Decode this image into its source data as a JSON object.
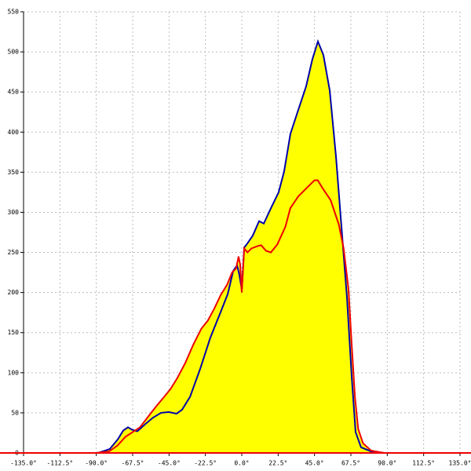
{
  "chart_data": {
    "type": "area-line",
    "xlim": [
      -135,
      135
    ],
    "xticks": [
      {
        "value": -135,
        "label": "-135.0°"
      },
      {
        "value": -112.5,
        "label": "-112.5°"
      },
      {
        "value": -90,
        "label": "-90.0°"
      },
      {
        "value": -67.5,
        "label": "-67.5°"
      },
      {
        "value": -45,
        "label": "-45.0°"
      },
      {
        "value": -22.5,
        "label": "-22.5°"
      },
      {
        "value": 0,
        "label": "0.0°"
      },
      {
        "value": 22.5,
        "label": "22.5°"
      },
      {
        "value": 45,
        "label": "45.0°"
      },
      {
        "value": 67.5,
        "label": "67.5°"
      },
      {
        "value": 90,
        "label": "90.0°"
      },
      {
        "value": 112.5,
        "label": "112.5°"
      },
      {
        "value": 135,
        "label": "135.0°"
      }
    ],
    "ylim": [
      0,
      550
    ],
    "yticks": [
      0,
      50,
      100,
      150,
      200,
      250,
      300,
      350,
      400,
      450,
      500,
      550
    ],
    "grid": true,
    "fill_color": "#ffff00",
    "series": [
      {
        "color": "#0000aa",
        "x": [
          -88.9,
          -81.6,
          -76.7,
          -73.3,
          -70.4,
          -68,
          -64.6,
          -59.7,
          -54.9,
          -50,
          -45.2,
          -40.3,
          -36.9,
          -32,
          -25.7,
          -19.4,
          -13.6,
          -8.7,
          -5.3,
          -2.9,
          -1.5,
          0,
          1.5,
          3.4,
          6.8,
          10.7,
          13.6,
          18,
          22.8,
          26.2,
          30.1,
          35,
          39.8,
          43.7,
          47.1,
          50.5,
          54.4,
          58.3,
          61.7,
          65.1,
          68,
          70.4,
          73.8,
          81.1,
          88.4
        ],
        "values": [
          0,
          5,
          17,
          28,
          32,
          29,
          27,
          36,
          44,
          50,
          51,
          49,
          54,
          70,
          105,
          144,
          173,
          198,
          227,
          234,
          222,
          204,
          256,
          261,
          271,
          289,
          286,
          305,
          325,
          351,
          398,
          428,
          457,
          491,
          513,
          496,
          452,
          369,
          281,
          193,
          95,
          26,
          7,
          1,
          0
        ]
      },
      {
        "color": "#ee0000",
        "x": [
          -90,
          -82,
          -77,
          -72,
          -67.5,
          -63,
          -58,
          -53,
          -48,
          -44,
          -40,
          -35,
          -30,
          -25,
          -21,
          -17,
          -13,
          -9,
          -6,
          -3.5,
          -2,
          -1,
          0,
          1.5,
          3.5,
          6,
          10,
          12,
          15,
          18,
          22,
          27,
          30,
          35,
          40,
          45,
          47,
          50,
          55,
          60,
          63,
          66,
          68,
          70,
          72,
          75,
          80,
          88
        ],
        "values": [
          0,
          2,
          9,
          20,
          26,
          32,
          45,
          58,
          70,
          80,
          93,
          112,
          135,
          155,
          165,
          180,
          197,
          210,
          225,
          230,
          245,
          235,
          200,
          255,
          250,
          255,
          258,
          259,
          252,
          250,
          260,
          282,
          305,
          320,
          330,
          340,
          340,
          330,
          315,
          285,
          255,
          205,
          135,
          70,
          30,
          12,
          3,
          0
        ]
      }
    ]
  }
}
